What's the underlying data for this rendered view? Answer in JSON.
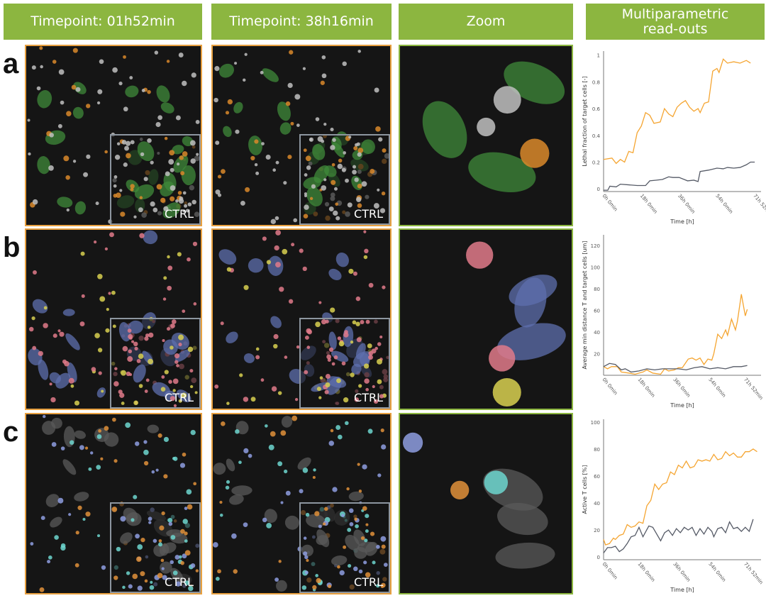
{
  "headers": [
    "Timepoint: 01h52min",
    "Timepoint: 38h16min",
    "Zoom",
    "Multiparametric read-outs"
  ],
  "rows": [
    {
      "label": "a",
      "ctrl": "CTRL"
    },
    {
      "label": "b",
      "ctrl": "CTRL"
    },
    {
      "label": "c",
      "ctrl": "CTRL"
    }
  ],
  "colors": {
    "header": "#8cb640",
    "timepoint_border": "#e8a040",
    "zoom_border": "#8cb640",
    "treated_line": "#f5a531",
    "control_line": "#555a66"
  },
  "chart_data": [
    {
      "type": "line",
      "ylabel": "Lethal fraction of target cells [-]",
      "xlabel": "Time [h]",
      "xticks": [
        0,
        18,
        36,
        54,
        71.87
      ],
      "xtick_labels": [
        "0h 0min",
        "18h 0min",
        "36h 0min",
        "54h 0min",
        "71h 52min"
      ],
      "yticks": [
        0,
        0.2,
        0.4,
        0.6,
        0.8,
        1
      ],
      "ytick_labels": [
        "0",
        "0.2",
        "0.4",
        "0.6",
        "0.8",
        "1"
      ],
      "xlim": [
        0,
        75
      ],
      "ylim": [
        -0.02,
        1.03
      ],
      "grid": false,
      "series": [
        {
          "color": "#f5a531",
          "x": [
            0,
            4,
            6,
            8,
            10,
            12,
            14,
            16,
            18,
            20,
            22,
            24,
            27,
            29,
            31,
            33,
            35,
            37,
            39,
            41,
            43,
            45,
            46,
            48,
            50,
            52,
            54,
            55,
            57,
            59,
            62,
            65,
            68,
            70
          ],
          "y": [
            0.22,
            0.23,
            0.19,
            0.22,
            0.2,
            0.28,
            0.27,
            0.42,
            0.47,
            0.57,
            0.55,
            0.49,
            0.5,
            0.6,
            0.56,
            0.54,
            0.61,
            0.64,
            0.66,
            0.61,
            0.58,
            0.6,
            0.57,
            0.64,
            0.65,
            0.88,
            0.9,
            0.87,
            0.97,
            0.94,
            0.95,
            0.94,
            0.96,
            0.94
          ]
        },
        {
          "color": "#555a66",
          "x": [
            0,
            2,
            3,
            6,
            8,
            12,
            16,
            20,
            22,
            25,
            28,
            31,
            33,
            36,
            40,
            43,
            45,
            46,
            50,
            54,
            57,
            59,
            62,
            65,
            68,
            70,
            72
          ],
          "y": [
            -0.01,
            -0.01,
            0.02,
            0.015,
            0.035,
            0.03,
            0.025,
            0.025,
            0.06,
            0.065,
            0.07,
            0.09,
            0.085,
            0.085,
            0.06,
            0.065,
            0.055,
            0.13,
            0.14,
            0.155,
            0.15,
            0.16,
            0.155,
            0.16,
            0.18,
            0.2,
            0.2
          ]
        }
      ]
    },
    {
      "type": "line",
      "ylabel": "Average min distance T and target cells [um]",
      "xlabel": "Time [h]",
      "xticks": [
        0,
        18,
        36,
        54,
        71.87
      ],
      "xtick_labels": [
        "0h 0min",
        "18h 0min",
        "36h 0min",
        "54h 0min",
        "71h 52min"
      ],
      "yticks": [
        20,
        40,
        60,
        80,
        100,
        120
      ],
      "ytick_labels": [
        "20",
        "40",
        "60",
        "80",
        "100",
        "120"
      ],
      "xlim": [
        0,
        80
      ],
      "ylim": [
        0,
        130
      ],
      "grid": false,
      "series": [
        {
          "color": "#f5a531",
          "x": [
            0,
            2,
            4,
            7,
            9,
            13,
            16,
            20,
            22,
            25,
            29,
            31,
            33,
            36,
            38,
            40,
            43,
            45,
            47,
            49,
            51,
            53,
            55,
            56,
            58,
            60,
            62,
            63,
            65,
            67,
            68,
            70,
            71,
            72,
            73
          ],
          "y": [
            8,
            6,
            8,
            8,
            3,
            2,
            1,
            3,
            5,
            2,
            1,
            6,
            4,
            5,
            7,
            7,
            15,
            16,
            14,
            16,
            10,
            15,
            14,
            20,
            38,
            34,
            42,
            37,
            52,
            42,
            50,
            75,
            65,
            55,
            61
          ]
        },
        {
          "color": "#555a66",
          "x": [
            0,
            3,
            6,
            9,
            11,
            14,
            18,
            22,
            26,
            30,
            34,
            38,
            42,
            46,
            50,
            54,
            58,
            62,
            66,
            70,
            73
          ],
          "y": [
            8,
            11,
            10,
            5,
            6,
            3,
            4,
            6,
            5,
            6,
            6,
            6,
            5,
            7,
            8,
            6,
            7,
            6,
            8,
            8,
            9
          ]
        }
      ]
    },
    {
      "type": "line",
      "ylabel": "Active T cells [%]",
      "xlabel": "Time [h]",
      "xticks": [
        0,
        18,
        36,
        54,
        71.87
      ],
      "xtick_labels": [
        "0h 0min",
        "18h 0min",
        "36h 0min",
        "54h 0min",
        "71h 52min"
      ],
      "yticks": [
        0,
        20,
        40,
        60,
        80,
        100
      ],
      "ytick_labels": [
        "0",
        "20",
        "40",
        "60",
        "80",
        "100"
      ],
      "xlim": [
        0,
        80
      ],
      "ylim": [
        -2,
        102
      ],
      "grid": false,
      "series": [
        {
          "color": "#f5a531",
          "x": [
            0,
            1,
            3,
            5,
            6,
            8,
            10,
            12,
            14,
            16,
            18,
            20,
            22,
            24,
            26,
            28,
            30,
            32,
            34,
            36,
            38,
            40,
            42,
            44,
            46,
            48,
            50,
            52,
            54,
            56,
            58,
            60,
            62,
            64,
            66,
            68,
            70,
            72,
            74,
            76,
            78
          ],
          "y": [
            13,
            9,
            10,
            14,
            13,
            16,
            17,
            24,
            22,
            23,
            26,
            25,
            38,
            42,
            54,
            50,
            54,
            55,
            63,
            61,
            68,
            66,
            71,
            66,
            67,
            72,
            71,
            72,
            71,
            76,
            72,
            73,
            78,
            75,
            77,
            74,
            74,
            78,
            78,
            80,
            78
          ]
        },
        {
          "color": "#555a66",
          "x": [
            0,
            2,
            4,
            6,
            8,
            10,
            12,
            14,
            16,
            18,
            20,
            23,
            25,
            27,
            29,
            31,
            33,
            35,
            37,
            39,
            41,
            43,
            45,
            47,
            49,
            51,
            53,
            55,
            56,
            58,
            60,
            62,
            64,
            66,
            68,
            70,
            72,
            74,
            76
          ],
          "y": [
            3,
            7,
            7,
            8,
            4,
            6,
            10,
            15,
            16,
            22,
            15,
            23,
            22,
            17,
            12,
            18,
            20,
            16,
            21,
            18,
            22,
            20,
            22,
            16,
            21,
            17,
            22,
            19,
            15,
            21,
            22,
            18,
            26,
            21,
            22,
            19,
            22,
            19,
            28
          ]
        }
      ]
    }
  ]
}
